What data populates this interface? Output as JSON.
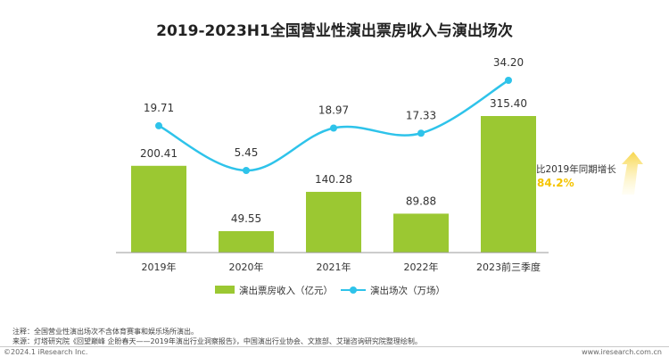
{
  "title": "2019-2023H1全国营业性演出票房收入与演出场次",
  "chart_data": {
    "type": "bar+line",
    "categories": [
      "2019年",
      "2020年",
      "2021年",
      "2022年",
      "2023前三季度"
    ],
    "series": [
      {
        "name": "演出票房收入（亿元）",
        "type": "bar",
        "color": "#9bc832",
        "values": [
          200.41,
          49.55,
          140.28,
          89.88,
          315.4
        ],
        "labels": [
          "200.41",
          "49.55",
          "140.28",
          "89.88",
          "315.40"
        ]
      },
      {
        "name": "演出场次（万场）",
        "type": "line",
        "color": "#2ec3ea",
        "values": [
          19.71,
          5.45,
          18.97,
          17.33,
          34.2
        ],
        "labels": [
          "19.71",
          "5.45",
          "18.97",
          "17.33",
          "34.20"
        ]
      }
    ],
    "annotation": {
      "text": "比2019年同期增长",
      "value": "84.2%",
      "value_color": "#f5c400"
    },
    "legend_position": "bottom",
    "grid": false
  },
  "notes": {
    "note": "注释：全国营业性演出场次不含体育赛事和娱乐场所演出。",
    "source": "来源：灯塔研究院《回望巅峰 企盼春天——2019年演出行业洞察报告》，中国演出行业协会、文旅部、艾瑞咨询研究院整理绘制。"
  },
  "footer": {
    "copyright": "©2024.1 iResearch Inc.",
    "website": "www.iresearch.com.cn"
  }
}
